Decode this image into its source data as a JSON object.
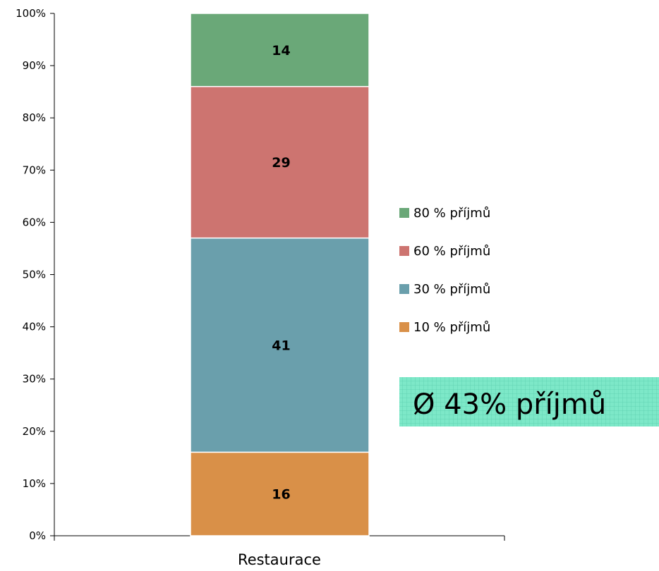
{
  "chart_data": {
    "type": "bar",
    "stacked": true,
    "normalized": true,
    "categories": [
      "Restaurace"
    ],
    "series": [
      {
        "name": "10 % příjmů",
        "values": [
          16
        ],
        "color": "#d99048"
      },
      {
        "name": "30 % příjmů",
        "values": [
          41
        ],
        "color": "#6a9fac"
      },
      {
        "name": "60 % příjmů",
        "values": [
          29
        ],
        "color": "#cd7470"
      },
      {
        "name": "80 % příjmů",
        "values": [
          14
        ],
        "color": "#6aa878"
      }
    ],
    "ylim": [
      0,
      100
    ],
    "yticks": [
      "0%",
      "10%",
      "20%",
      "30%",
      "40%",
      "50%",
      "60%",
      "70%",
      "80%",
      "90%",
      "100%"
    ],
    "title": "",
    "xlabel": "",
    "ylabel": "",
    "grid": false,
    "legend_position": "right",
    "annotation": {
      "text": "Ø 43% příjmů",
      "background": "#7de8c8",
      "grid_color": "#5ccfae"
    }
  }
}
